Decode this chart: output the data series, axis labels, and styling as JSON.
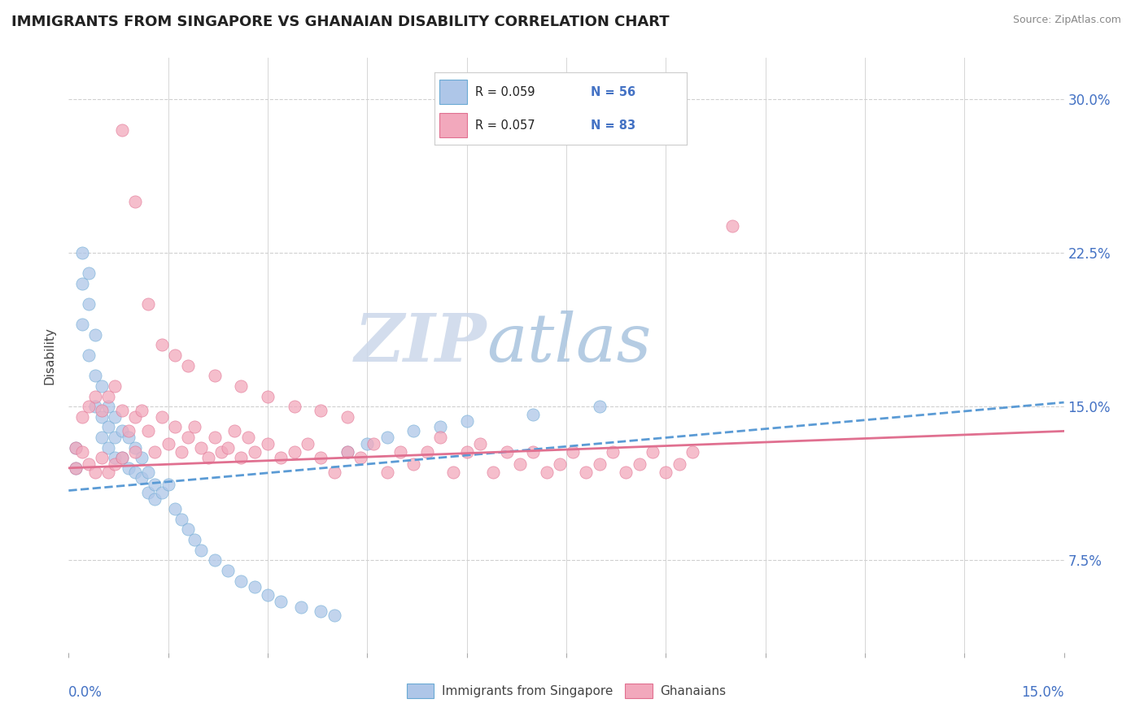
{
  "title": "IMMIGRANTS FROM SINGAPORE VS GHANAIAN DISABILITY CORRELATION CHART",
  "source": "Source: ZipAtlas.com",
  "ylabel": "Disability",
  "ytick_labels": [
    "7.5%",
    "15.0%",
    "22.5%",
    "30.0%"
  ],
  "ytick_values": [
    0.075,
    0.15,
    0.225,
    0.3
  ],
  "xlim": [
    0.0,
    0.15
  ],
  "ylim": [
    0.03,
    0.32
  ],
  "color_blue_fill": "#aec6e8",
  "color_blue_edge": "#6aaad4",
  "color_pink_fill": "#f2a8bc",
  "color_pink_edge": "#e07090",
  "color_line_blue": "#5b9bd5",
  "color_line_pink": "#e07090",
  "color_text_blue": "#4472c4",
  "color_grid": "#d0d0d0",
  "watermark_zip": "#d0d8e8",
  "watermark_atlas": "#a8c4e0",
  "blue_trend": [
    0.109,
    0.152
  ],
  "pink_trend": [
    0.12,
    0.138
  ],
  "blue_x": [
    0.001,
    0.001,
    0.002,
    0.002,
    0.002,
    0.003,
    0.003,
    0.003,
    0.004,
    0.004,
    0.004,
    0.005,
    0.005,
    0.005,
    0.006,
    0.006,
    0.006,
    0.007,
    0.007,
    0.007,
    0.008,
    0.008,
    0.009,
    0.009,
    0.01,
    0.01,
    0.011,
    0.011,
    0.012,
    0.012,
    0.013,
    0.013,
    0.014,
    0.015,
    0.016,
    0.017,
    0.018,
    0.019,
    0.02,
    0.022,
    0.024,
    0.026,
    0.028,
    0.03,
    0.032,
    0.035,
    0.038,
    0.04,
    0.042,
    0.045,
    0.048,
    0.052,
    0.056,
    0.06,
    0.07,
    0.08
  ],
  "blue_y": [
    0.13,
    0.12,
    0.225,
    0.21,
    0.19,
    0.215,
    0.2,
    0.175,
    0.185,
    0.165,
    0.15,
    0.16,
    0.145,
    0.135,
    0.15,
    0.14,
    0.13,
    0.145,
    0.135,
    0.125,
    0.138,
    0.125,
    0.135,
    0.12,
    0.13,
    0.118,
    0.125,
    0.115,
    0.118,
    0.108,
    0.112,
    0.105,
    0.108,
    0.112,
    0.1,
    0.095,
    0.09,
    0.085,
    0.08,
    0.075,
    0.07,
    0.065,
    0.062,
    0.058,
    0.055,
    0.052,
    0.05,
    0.048,
    0.128,
    0.132,
    0.135,
    0.138,
    0.14,
    0.143,
    0.146,
    0.15
  ],
  "pink_x": [
    0.001,
    0.001,
    0.002,
    0.002,
    0.003,
    0.003,
    0.004,
    0.004,
    0.005,
    0.005,
    0.006,
    0.006,
    0.007,
    0.007,
    0.008,
    0.008,
    0.009,
    0.01,
    0.01,
    0.011,
    0.012,
    0.013,
    0.014,
    0.015,
    0.016,
    0.017,
    0.018,
    0.019,
    0.02,
    0.021,
    0.022,
    0.023,
    0.024,
    0.025,
    0.026,
    0.027,
    0.028,
    0.03,
    0.032,
    0.034,
    0.036,
    0.038,
    0.04,
    0.042,
    0.044,
    0.046,
    0.048,
    0.05,
    0.052,
    0.054,
    0.056,
    0.058,
    0.06,
    0.062,
    0.064,
    0.066,
    0.068,
    0.07,
    0.072,
    0.074,
    0.076,
    0.078,
    0.08,
    0.082,
    0.084,
    0.086,
    0.088,
    0.09,
    0.092,
    0.094,
    0.008,
    0.01,
    0.012,
    0.014,
    0.016,
    0.018,
    0.022,
    0.026,
    0.03,
    0.034,
    0.038,
    0.042,
    0.1
  ],
  "pink_y": [
    0.13,
    0.12,
    0.145,
    0.128,
    0.15,
    0.122,
    0.155,
    0.118,
    0.148,
    0.125,
    0.155,
    0.118,
    0.16,
    0.122,
    0.148,
    0.125,
    0.138,
    0.145,
    0.128,
    0.148,
    0.138,
    0.128,
    0.145,
    0.132,
    0.14,
    0.128,
    0.135,
    0.14,
    0.13,
    0.125,
    0.135,
    0.128,
    0.13,
    0.138,
    0.125,
    0.135,
    0.128,
    0.132,
    0.125,
    0.128,
    0.132,
    0.125,
    0.118,
    0.128,
    0.125,
    0.132,
    0.118,
    0.128,
    0.122,
    0.128,
    0.135,
    0.118,
    0.128,
    0.132,
    0.118,
    0.128,
    0.122,
    0.128,
    0.118,
    0.122,
    0.128,
    0.118,
    0.122,
    0.128,
    0.118,
    0.122,
    0.128,
    0.118,
    0.122,
    0.128,
    0.285,
    0.25,
    0.2,
    0.18,
    0.175,
    0.17,
    0.165,
    0.16,
    0.155,
    0.15,
    0.148,
    0.145,
    0.238
  ]
}
